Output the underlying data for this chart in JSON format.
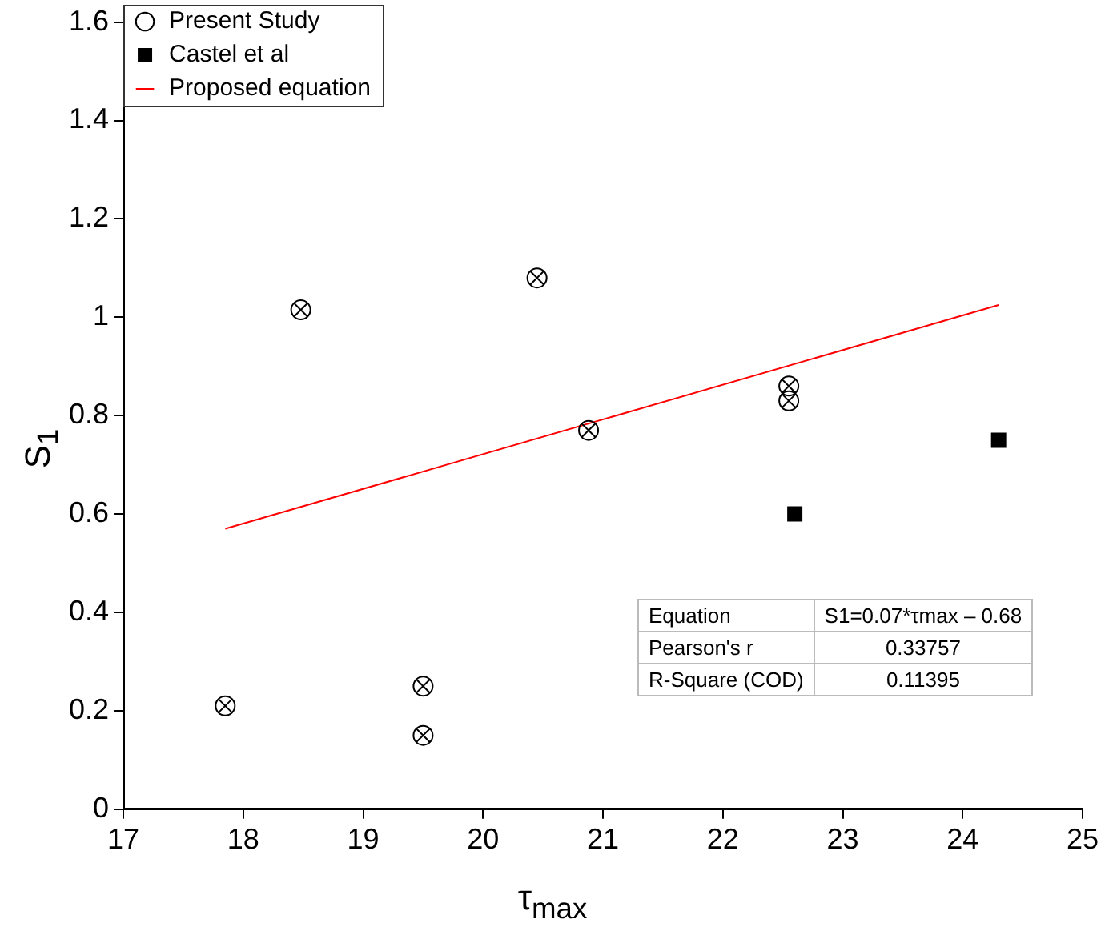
{
  "chart_data": {
    "type": "scatter",
    "xlabel": "τ$_{max}$",
    "ylabel": "S$_{1}$",
    "xlim": [
      17,
      25
    ],
    "xticks": [
      17,
      18,
      19,
      20,
      21,
      22,
      23,
      24,
      25
    ],
    "ylim": [
      0,
      1.6
    ],
    "yticks": [
      0,
      0.2,
      0.4,
      0.6,
      0.8,
      1,
      1.2,
      1.4,
      1.6
    ],
    "grid": false,
    "legend": "top left",
    "series": [
      {
        "name": "Present Study",
        "type": "scatter",
        "marker": "circle",
        "color": "#000000",
        "x": [
          17.85,
          18.48,
          19.5,
          19.5,
          20.45,
          20.88,
          22.55,
          22.55
        ],
        "values": [
          0.21,
          1.015,
          0.25,
          0.15,
          1.08,
          0.77,
          0.86,
          0.83
        ]
      },
      {
        "name": "Castel et al",
        "type": "scatter",
        "marker": "square",
        "color": "#000000",
        "x": [
          22.6,
          24.3
        ],
        "values": [
          0.6,
          0.75
        ]
      },
      {
        "name": "Proposed equation",
        "type": "line",
        "marker": "none",
        "color": "#ff0000",
        "x": [
          17.85,
          24.3
        ],
        "values": [
          0.57,
          1.025
        ]
      }
    ],
    "annotations": [
      "Equation",
      "S1=0.07*τmax – 0.68",
      "Pearson's r",
      "0.33757",
      "R-Square (COD)",
      "0.11395"
    ]
  }
}
